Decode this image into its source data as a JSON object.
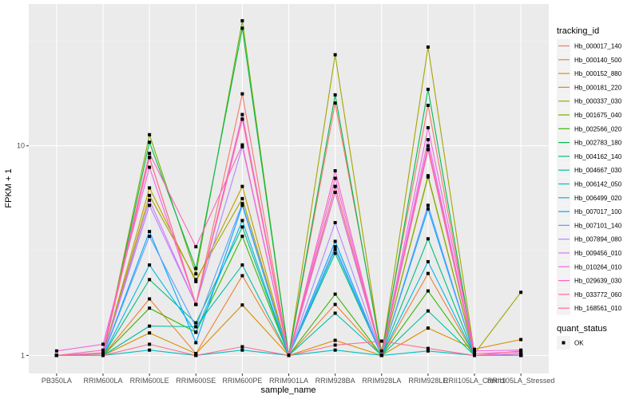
{
  "chart_data": {
    "type": "line",
    "title": "",
    "xlabel": "sample_name",
    "ylabel": "FPKM + 1",
    "yscale": "log10",
    "ylim": [
      0.82,
      47.5
    ],
    "yticks": [
      1,
      10
    ],
    "ytick_labels": [
      "1",
      "10"
    ],
    "grid": true,
    "categories": [
      "PB350LA",
      "RRIM600LA",
      "RRIM600LE",
      "RRIM600SE",
      "RRIM600PE",
      "RRIM901LA",
      "RRIM928BA",
      "RRIM928LA",
      "RRIM928LE",
      "RRII105LA_Control",
      "RRII105LA_Stressed"
    ],
    "legend": {
      "position": "right",
      "color_title": "tracking_id",
      "shape_title": "quant_status",
      "shape_entries": [
        "OK"
      ]
    },
    "series": [
      {
        "name": "Hb_000017_140",
        "color": "#F8766D",
        "values": [
          1.0,
          1.02,
          8.8,
          1.75,
          17.7,
          1.0,
          16.0,
          1.05,
          15.6,
          1.0,
          1.02
        ]
      },
      {
        "name": "Hb_000140_500",
        "color": "#EA8331",
        "values": [
          1.0,
          1.0,
          1.86,
          1.02,
          2.4,
          1.0,
          1.75,
          1.0,
          2.46,
          1.0,
          1.0
        ]
      },
      {
        "name": "Hb_000152_880",
        "color": "#D89000",
        "values": [
          1.0,
          1.0,
          1.28,
          1.02,
          1.74,
          1.0,
          1.18,
          1.0,
          1.35,
          1.07,
          1.19
        ]
      },
      {
        "name": "Hb_000181_220",
        "color": "#C09B00",
        "values": [
          1.0,
          1.0,
          6.3,
          2.25,
          6.4,
          1.0,
          6.0,
          1.0,
          7.1,
          1.0,
          1.0
        ]
      },
      {
        "name": "Hb_000337_030",
        "color": "#A3A500",
        "values": [
          1.0,
          1.0,
          5.8,
          2.3,
          5.6,
          1.0,
          27.2,
          1.0,
          29.6,
          1.02,
          2.0
        ]
      },
      {
        "name": "Hb_001675_040",
        "color": "#7CAE00",
        "values": [
          1.0,
          1.0,
          11.3,
          2.45,
          39.5,
          1.0,
          6.4,
          1.0,
          7.2,
          1.0,
          1.0
        ]
      },
      {
        "name": "Hb_002566_020",
        "color": "#39B600",
        "values": [
          1.0,
          1.0,
          1.68,
          1.29,
          3.7,
          1.0,
          1.96,
          1.0,
          2.03,
          1.0,
          1.0
        ]
      },
      {
        "name": "Hb_002783_180",
        "color": "#00BB4E",
        "values": [
          1.0,
          1.0,
          10.4,
          2.6,
          36.4,
          1.0,
          17.5,
          1.0,
          18.6,
          1.0,
          1.0
        ]
      },
      {
        "name": "Hb_004162_140",
        "color": "#00BF7D",
        "values": [
          1.0,
          1.0,
          2.3,
          1.43,
          4.1,
          1.0,
          3.07,
          1.0,
          3.6,
          1.0,
          1.0
        ]
      },
      {
        "name": "Hb_004667_030",
        "color": "#00C1A3",
        "values": [
          1.0,
          1.0,
          1.38,
          1.37,
          2.7,
          1.0,
          1.59,
          1.0,
          1.63,
          1.0,
          1.0
        ]
      },
      {
        "name": "Hb_006142_050",
        "color": "#00BFC4",
        "values": [
          1.0,
          1.0,
          1.06,
          1.0,
          1.06,
          1.0,
          1.06,
          1.0,
          1.05,
          1.0,
          1.0
        ]
      },
      {
        "name": "Hb_006499_020",
        "color": "#00B8E7",
        "values": [
          1.0,
          1.0,
          2.7,
          1.29,
          4.4,
          1.0,
          3.2,
          1.0,
          2.8,
          1.0,
          1.0
        ]
      },
      {
        "name": "Hb_007017_100",
        "color": "#00A9FF",
        "values": [
          1.0,
          1.0,
          3.9,
          1.15,
          5.2,
          1.0,
          3.5,
          1.0,
          5.0,
          1.0,
          1.0
        ]
      },
      {
        "name": "Hb_007101_140",
        "color": "#619CFF",
        "values": [
          1.0,
          1.0,
          3.7,
          1.37,
          5.3,
          1.0,
          3.3,
          1.0,
          5.2,
          1.0,
          1.0
        ]
      },
      {
        "name": "Hb_007894_080",
        "color": "#AE87FF",
        "values": [
          1.0,
          1.0,
          5.2,
          1.75,
          9.9,
          1.0,
          4.3,
          1.0,
          9.6,
          1.0,
          1.0
        ]
      },
      {
        "name": "Hb_009456_010",
        "color": "#DB72FB",
        "values": [
          1.0,
          1.0,
          5.5,
          1.75,
          13.4,
          1.0,
          6.0,
          1.0,
          10.7,
          1.0,
          1.02
        ]
      },
      {
        "name": "Hb_010264_010",
        "color": "#F564E3",
        "values": [
          1.05,
          1.13,
          7.9,
          1.75,
          14.1,
          1.0,
          7.0,
          1.0,
          12.2,
          1.05,
          1.06
        ]
      },
      {
        "name": "Hb_029639_030",
        "color": "#FF61C3",
        "values": [
          1.0,
          1.06,
          9.2,
          3.3,
          10.1,
          1.0,
          7.6,
          1.0,
          10.0,
          1.02,
          1.04
        ]
      },
      {
        "name": "Hb_033772_060",
        "color": "#FF6C91",
        "values": [
          1.0,
          1.03,
          8.8,
          1.75,
          13.4,
          1.0,
          6.4,
          1.0,
          9.6,
          1.0,
          1.05
        ]
      },
      {
        "name": "Hb_168561_010",
        "color": "#FF6C91",
        "values": [
          1.0,
          1.0,
          1.13,
          1.0,
          1.1,
          1.0,
          1.12,
          1.17,
          1.08,
          1.0,
          1.0
        ]
      }
    ]
  }
}
